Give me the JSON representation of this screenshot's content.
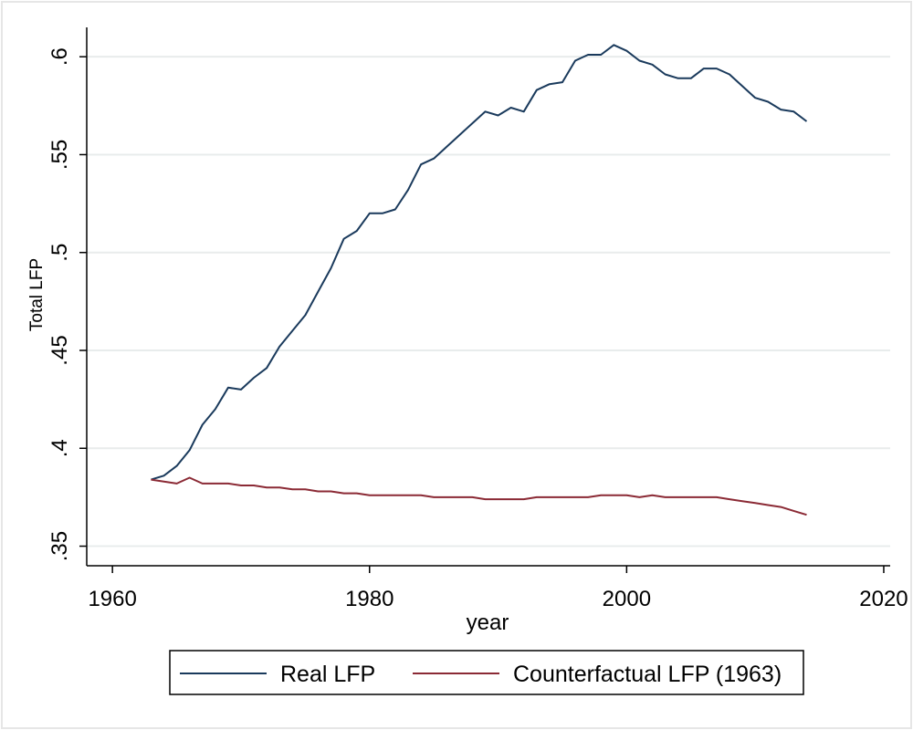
{
  "chart_data": {
    "type": "line",
    "title": "",
    "xlabel": "year",
    "ylabel": "Total LFP",
    "xlim": [
      1958,
      2020.5
    ],
    "ylim": [
      0.34,
      0.615
    ],
    "xticks": [
      1960,
      1980,
      2000,
      2020
    ],
    "xtick_labels": [
      "1960",
      "1980",
      "2000",
      "2020"
    ],
    "yticks": [
      0.35,
      0.4,
      0.45,
      0.5,
      0.55,
      0.6
    ],
    "ytick_labels": [
      ".35",
      ".4",
      ".45",
      ".5",
      ".55",
      ".6"
    ],
    "grid": true,
    "legend_position": "bottom",
    "x": [
      1963,
      1964,
      1965,
      1966,
      1967,
      1968,
      1969,
      1970,
      1971,
      1972,
      1973,
      1974,
      1975,
      1976,
      1977,
      1978,
      1979,
      1980,
      1981,
      1982,
      1983,
      1984,
      1985,
      1986,
      1987,
      1988,
      1989,
      1990,
      1991,
      1992,
      1993,
      1994,
      1995,
      1996,
      1997,
      1998,
      1999,
      2000,
      2001,
      2002,
      2003,
      2004,
      2005,
      2006,
      2007,
      2008,
      2009,
      2010,
      2011,
      2012,
      2013,
      2014
    ],
    "series": [
      {
        "name": "Real LFP",
        "color": "#1a3a5c",
        "values": [
          0.384,
          0.386,
          0.391,
          0.399,
          0.412,
          0.42,
          0.431,
          0.43,
          0.436,
          0.441,
          0.452,
          0.46,
          0.468,
          0.48,
          0.492,
          0.507,
          0.511,
          0.52,
          0.52,
          0.522,
          0.532,
          0.545,
          0.548,
          0.554,
          0.56,
          0.566,
          0.572,
          0.57,
          0.574,
          0.572,
          0.583,
          0.586,
          0.587,
          0.598,
          0.601,
          0.601,
          0.606,
          0.603,
          0.598,
          0.596,
          0.591,
          0.589,
          0.589,
          0.594,
          0.594,
          0.591,
          0.585,
          0.579,
          0.577,
          0.573,
          0.572,
          0.567
        ]
      },
      {
        "name": "Counterfactual LFP (1963)",
        "color": "#8b2a35",
        "values": [
          0.384,
          0.383,
          0.382,
          0.385,
          0.382,
          0.382,
          0.382,
          0.381,
          0.381,
          0.38,
          0.38,
          0.379,
          0.379,
          0.378,
          0.378,
          0.377,
          0.377,
          0.376,
          0.376,
          0.376,
          0.376,
          0.376,
          0.375,
          0.375,
          0.375,
          0.375,
          0.374,
          0.374,
          0.374,
          0.374,
          0.375,
          0.375,
          0.375,
          0.375,
          0.375,
          0.376,
          0.376,
          0.376,
          0.375,
          0.376,
          0.375,
          0.375,
          0.375,
          0.375,
          0.375,
          0.374,
          0.373,
          0.372,
          0.371,
          0.37,
          0.368,
          0.366
        ]
      }
    ]
  }
}
